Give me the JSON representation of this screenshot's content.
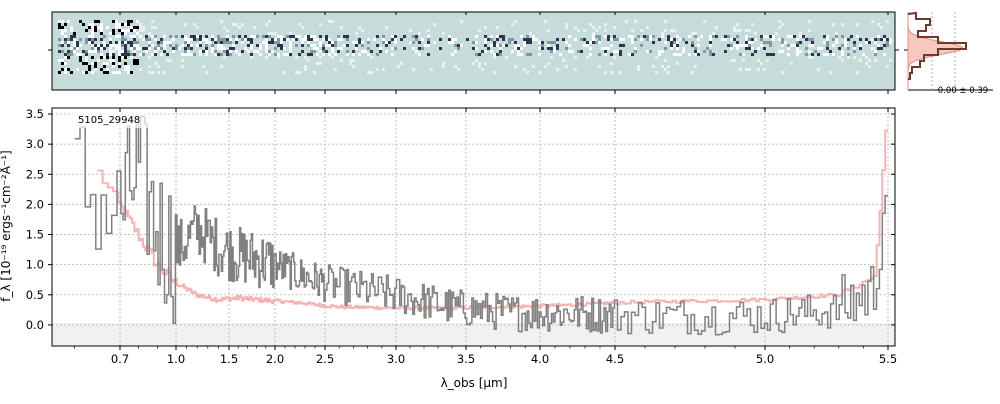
{
  "chart_data": {
    "type": "line",
    "title": "",
    "label": "5105_29948",
    "xlabel": "λ_obs [μm]",
    "ylabel": "f_λ [10⁻¹⁹ ergs⁻¹cm⁻²Å⁻¹]",
    "x_scale": "wavelength-nonlinear",
    "xlim": [
      0.55,
      5.52
    ],
    "ylim": [
      -0.35,
      3.6
    ],
    "x_ticks": [
      0.7,
      1.0,
      1.5,
      2.0,
      2.5,
      3.0,
      3.5,
      4.0,
      4.5,
      5.0,
      5.5
    ],
    "x_tick_labels": [
      "0.7",
      "1.0",
      "1.5",
      "2.0",
      "2.5",
      "3.0",
      "3.5",
      "4.0",
      "4.5",
      "5.0",
      "5.5"
    ],
    "y_ticks": [
      0.0,
      0.5,
      1.0,
      1.5,
      2.0,
      2.5,
      3.0,
      3.5
    ],
    "y_tick_labels": [
      "0.0",
      "0.5",
      "1.0",
      "1.5",
      "2.0",
      "2.5",
      "3.0",
      "3.5"
    ],
    "grid": true,
    "series": [
      {
        "color": "#808080",
        "style": "step",
        "x": [
          0.6,
          0.7,
          0.8,
          0.9,
          1.0,
          1.2,
          1.4,
          1.6,
          1.8,
          2.0,
          2.3,
          2.6,
          3.0,
          3.4,
          3.8,
          4.2,
          4.6,
          5.0,
          5.3,
          5.45,
          5.5
        ],
        "y": [
          2.5,
          1.8,
          2.6,
          1.6,
          1.2,
          1.6,
          1.3,
          1.15,
          1.1,
          1.0,
          0.8,
          0.65,
          0.5,
          0.3,
          0.2,
          0.2,
          0.15,
          0.15,
          0.25,
          0.6,
          2.6
        ]
      },
      {
        "color": "#f4a6a6",
        "style": "step",
        "x": [
          0.65,
          0.7,
          0.8,
          0.9,
          1.0,
          1.2,
          1.4,
          1.6,
          1.8,
          2.0,
          2.3,
          2.6,
          3.0,
          3.4,
          3.8,
          4.2,
          4.6,
          5.0,
          5.3,
          5.45,
          5.5
        ],
        "y": [
          2.6,
          2.0,
          1.5,
          1.0,
          0.7,
          0.5,
          0.42,
          0.45,
          0.42,
          0.4,
          0.36,
          0.3,
          0.28,
          0.28,
          0.3,
          0.33,
          0.38,
          0.42,
          0.5,
          0.8,
          3.5
        ]
      }
    ]
  },
  "histogram": {
    "stat_label": "0.00 ± 0.39"
  }
}
